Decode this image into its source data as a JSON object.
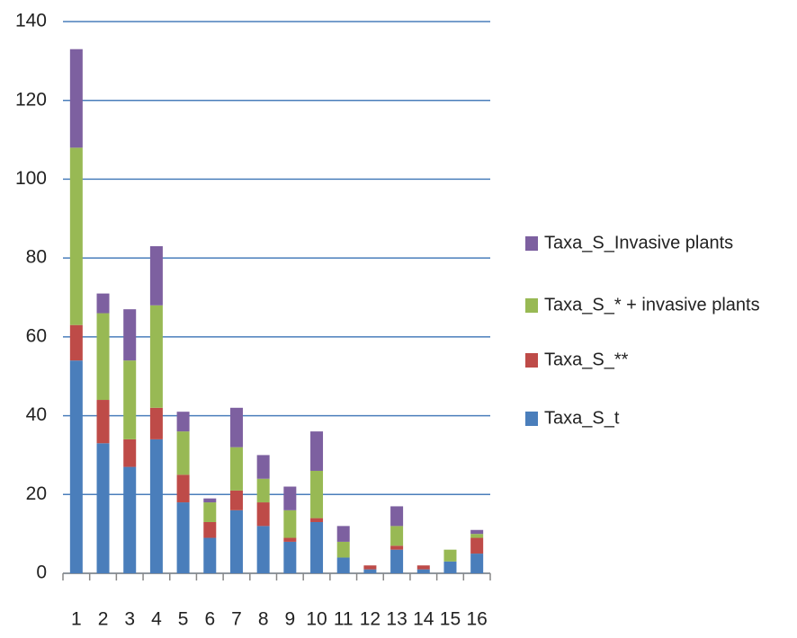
{
  "chart_data": {
    "type": "bar",
    "stacked": true,
    "categories": [
      "1",
      "2",
      "3",
      "4",
      "5",
      "6",
      "7",
      "8",
      "9",
      "10",
      "11",
      "12",
      "13",
      "14",
      "15",
      "16"
    ],
    "series": [
      {
        "name": "Taxa_S_t",
        "color": "#4a7ebb",
        "values": [
          54,
          33,
          27,
          34,
          18,
          9,
          16,
          12,
          8,
          13,
          4,
          1,
          6,
          1,
          3,
          5
        ]
      },
      {
        "name": "Taxa_S_**",
        "color": "#be4b48",
        "values": [
          9,
          11,
          7,
          8,
          7,
          4,
          5,
          6,
          1,
          1,
          0,
          1,
          1,
          1,
          0,
          4
        ]
      },
      {
        "name": "Taxa_S_* + invasive plants",
        "color": "#98b954",
        "values": [
          45,
          22,
          20,
          26,
          11,
          5,
          11,
          6,
          7,
          12,
          4,
          0,
          5,
          0,
          3,
          1
        ]
      },
      {
        "name": "Taxa_S_Invasive plants",
        "color": "#7d60a0",
        "values": [
          25,
          5,
          13,
          15,
          5,
          1,
          10,
          6,
          6,
          10,
          4,
          0,
          5,
          0,
          0,
          1
        ]
      }
    ],
    "ylim": [
      0,
      140
    ],
    "yticks": [
      0,
      20,
      40,
      60,
      80,
      100,
      120,
      140
    ],
    "grid": true,
    "legend": "right"
  }
}
